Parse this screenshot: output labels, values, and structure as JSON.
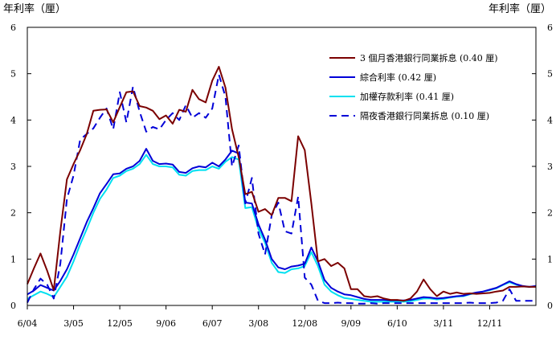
{
  "chart_data": {
    "type": "line",
    "ylabel_left": "年利率（厘）",
    "ylabel_right": "年利率（厘）",
    "ylim": [
      0,
      6
    ],
    "yticks": [
      0,
      1,
      2,
      3,
      4,
      5,
      6
    ],
    "x_tick_labels": [
      "6/04",
      "3/05",
      "12/05",
      "9/06",
      "6/07",
      "3/08",
      "12/08",
      "9/09",
      "6/10",
      "3/11",
      "12/11"
    ],
    "grid": false,
    "legend_position": "top-right",
    "series": [
      {
        "name": "3 個月香港銀行同業拆息 (0.40 厘)",
        "color": "#7b0000",
        "dash": "solid",
        "values": [
          0.46,
          0.8,
          1.12,
          0.75,
          0.33,
          1.6,
          2.72,
          3.05,
          3.35,
          3.7,
          4.2,
          4.22,
          4.23,
          3.95,
          4.28,
          4.6,
          4.62,
          4.3,
          4.27,
          4.2,
          4.02,
          4.1,
          3.92,
          4.22,
          4.18,
          4.65,
          4.45,
          4.38,
          4.85,
          5.15,
          4.7,
          3.8,
          3.2,
          2.4,
          2.45,
          2.02,
          2.08,
          1.95,
          2.32,
          2.32,
          2.25,
          3.65,
          3.35,
          2.2,
          0.95,
          1.0,
          0.85,
          0.92,
          0.8,
          0.35,
          0.35,
          0.2,
          0.18,
          0.2,
          0.15,
          0.12,
          0.12,
          0.1,
          0.15,
          0.3,
          0.56,
          0.35,
          0.2,
          0.3,
          0.25,
          0.28,
          0.25,
          0.26,
          0.25,
          0.26,
          0.27,
          0.3,
          0.32,
          0.4,
          0.4,
          0.41,
          0.4,
          0.4
        ]
      },
      {
        "name": "綜合利率 (0.42 厘)",
        "color": "#0000d8",
        "dash": "solid",
        "values": [
          0.24,
          0.32,
          0.44,
          0.38,
          0.32,
          0.53,
          0.78,
          1.1,
          1.45,
          1.8,
          2.1,
          2.42,
          2.62,
          2.83,
          2.85,
          2.95,
          3.0,
          3.12,
          3.38,
          3.12,
          3.05,
          3.06,
          3.04,
          2.88,
          2.86,
          2.96,
          3.0,
          2.98,
          3.08,
          3.0,
          3.15,
          3.34,
          3.28,
          2.22,
          2.2,
          1.75,
          1.42,
          1.0,
          0.82,
          0.78,
          0.84,
          0.86,
          0.9,
          1.25,
          0.95,
          0.55,
          0.38,
          0.3,
          0.24,
          0.22,
          0.18,
          0.14,
          0.12,
          0.12,
          0.12,
          0.11,
          0.11,
          0.11,
          0.12,
          0.15,
          0.18,
          0.17,
          0.15,
          0.16,
          0.18,
          0.2,
          0.21,
          0.25,
          0.28,
          0.3,
          0.34,
          0.38,
          0.45,
          0.52,
          0.46,
          0.42,
          0.4,
          0.42
        ]
      },
      {
        "name": "加權存款利率 (0.41 厘)",
        "color": "#00e0f0",
        "dash": "solid",
        "values": [
          0.14,
          0.22,
          0.3,
          0.25,
          0.18,
          0.4,
          0.62,
          0.95,
          1.32,
          1.65,
          2.0,
          2.3,
          2.5,
          2.75,
          2.8,
          2.9,
          2.95,
          3.05,
          3.25,
          3.05,
          3.0,
          3.0,
          2.98,
          2.82,
          2.8,
          2.9,
          2.92,
          2.92,
          3.0,
          2.95,
          3.1,
          3.2,
          3.15,
          2.1,
          2.12,
          1.65,
          1.35,
          0.92,
          0.72,
          0.7,
          0.78,
          0.8,
          0.85,
          1.15,
          0.85,
          0.45,
          0.3,
          0.22,
          0.16,
          0.14,
          0.12,
          0.1,
          0.08,
          0.08,
          0.08,
          0.08,
          0.08,
          0.08,
          0.09,
          0.12,
          0.15,
          0.15,
          0.13,
          0.14,
          0.17,
          0.19,
          0.2,
          0.24,
          0.27,
          0.3,
          0.33,
          0.37,
          0.44,
          0.5,
          0.45,
          0.41,
          0.4,
          0.41
        ]
      },
      {
        "name": "隔夜香港銀行同業拆息 (0.10 厘)",
        "color": "#0000d8",
        "dash": "dashed",
        "values": [
          0.06,
          0.35,
          0.58,
          0.45,
          0.15,
          0.9,
          2.3,
          2.8,
          3.58,
          3.7,
          3.82,
          4.05,
          4.25,
          3.8,
          4.6,
          3.95,
          4.72,
          4.18,
          3.75,
          3.85,
          3.8,
          4.0,
          4.15,
          4.0,
          4.32,
          4.05,
          4.15,
          4.05,
          4.25,
          4.98,
          4.5,
          3.0,
          3.45,
          2.2,
          2.75,
          1.55,
          1.1,
          1.95,
          2.22,
          1.6,
          1.55,
          2.35,
          0.6,
          0.45,
          0.1,
          0.05,
          0.05,
          0.06,
          0.05,
          0.05,
          0.04,
          0.04,
          0.05,
          0.04,
          0.05,
          0.05,
          0.05,
          0.05,
          0.05,
          0.05,
          0.05,
          0.05,
          0.05,
          0.05,
          0.05,
          0.05,
          0.05,
          0.06,
          0.05,
          0.05,
          0.05,
          0.06,
          0.1,
          0.35,
          0.1,
          0.1,
          0.1,
          0.1
        ]
      }
    ]
  }
}
